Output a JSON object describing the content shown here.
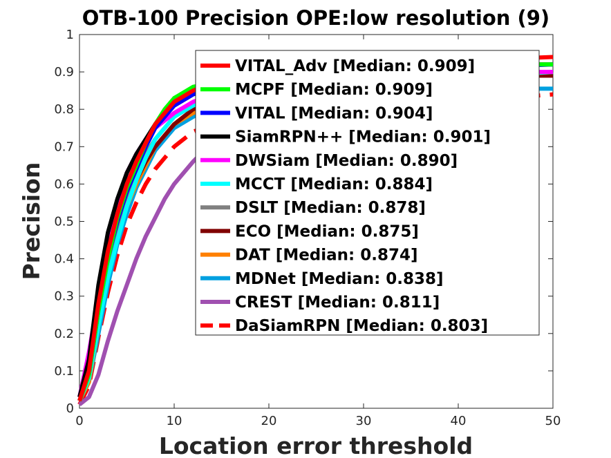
{
  "chart_data": {
    "type": "line",
    "title": "OTB-100 Precision OPE:low resolution (9)",
    "xlabel": "Location error threshold",
    "ylabel": "Precision",
    "xlim": [
      0,
      50
    ],
    "ylim": [
      0,
      1
    ],
    "x_ticks": [
      "0",
      "10",
      "20",
      "30",
      "40",
      "50"
    ],
    "y_ticks": [
      "0",
      "0.1",
      "0.2",
      "0.3",
      "0.4",
      "0.5",
      "0.6",
      "0.7",
      "0.8",
      "0.9",
      "1"
    ],
    "grid": false,
    "legend_position": "top-right",
    "x": [
      0,
      1,
      2,
      3,
      4,
      5,
      6,
      7,
      8,
      9,
      10,
      12,
      14,
      16,
      18,
      20,
      25,
      30,
      35,
      40,
      45,
      50
    ],
    "series": [
      {
        "name": "VITAL_Adv [Median: 0.909]",
        "color": "#ff0000",
        "dash": "solid",
        "values": [
          0.02,
          0.1,
          0.28,
          0.42,
          0.52,
          0.6,
          0.66,
          0.71,
          0.76,
          0.79,
          0.82,
          0.85,
          0.87,
          0.88,
          0.89,
          0.9,
          0.91,
          0.92,
          0.925,
          0.93,
          0.935,
          0.94
        ]
      },
      {
        "name": "MCPF [Median: 0.909]",
        "color": "#00ff00",
        "dash": "solid",
        "values": [
          0.02,
          0.09,
          0.26,
          0.4,
          0.51,
          0.59,
          0.65,
          0.71,
          0.76,
          0.8,
          0.83,
          0.86,
          0.87,
          0.88,
          0.89,
          0.9,
          0.905,
          0.91,
          0.915,
          0.92,
          0.92,
          0.92
        ]
      },
      {
        "name": "VITAL [Median: 0.904]",
        "color": "#0000ff",
        "dash": "solid",
        "values": [
          0.02,
          0.09,
          0.26,
          0.4,
          0.5,
          0.58,
          0.64,
          0.7,
          0.75,
          0.78,
          0.81,
          0.84,
          0.86,
          0.87,
          0.88,
          0.89,
          0.9,
          0.905,
          0.91,
          0.91,
          0.915,
          0.92
        ]
      },
      {
        "name": "SiamRPN++ [Median: 0.901]",
        "color": "#000000",
        "dash": "solid",
        "values": [
          0.03,
          0.13,
          0.33,
          0.47,
          0.56,
          0.63,
          0.68,
          0.72,
          0.76,
          0.79,
          0.81,
          0.84,
          0.86,
          0.87,
          0.88,
          0.89,
          0.9,
          0.905,
          0.91,
          0.915,
          0.92,
          0.92
        ]
      },
      {
        "name": "DWSiam [Median: 0.890]",
        "color": "#ff00ff",
        "dash": "solid",
        "values": [
          0.03,
          0.15,
          0.3,
          0.45,
          0.55,
          0.63,
          0.68,
          0.72,
          0.75,
          0.77,
          0.79,
          0.82,
          0.84,
          0.85,
          0.86,
          0.87,
          0.88,
          0.885,
          0.89,
          0.895,
          0.9,
          0.9
        ]
      },
      {
        "name": "MCCT [Median: 0.884]",
        "color": "#00ffff",
        "dash": "solid",
        "values": [
          0.02,
          0.08,
          0.22,
          0.35,
          0.45,
          0.54,
          0.61,
          0.67,
          0.72,
          0.75,
          0.78,
          0.81,
          0.83,
          0.85,
          0.86,
          0.87,
          0.88,
          0.885,
          0.89,
          0.89,
          0.895,
          0.9
        ]
      },
      {
        "name": "DSLT [Median: 0.878]",
        "color": "#808080",
        "dash": "solid",
        "values": [
          0.02,
          0.09,
          0.25,
          0.39,
          0.49,
          0.57,
          0.63,
          0.68,
          0.72,
          0.75,
          0.78,
          0.81,
          0.83,
          0.84,
          0.85,
          0.86,
          0.87,
          0.88,
          0.885,
          0.89,
          0.89,
          0.9
        ]
      },
      {
        "name": "ECO [Median: 0.875]",
        "color": "#800000",
        "dash": "solid",
        "values": [
          0.02,
          0.08,
          0.24,
          0.37,
          0.47,
          0.55,
          0.61,
          0.66,
          0.7,
          0.73,
          0.76,
          0.8,
          0.82,
          0.84,
          0.85,
          0.86,
          0.87,
          0.875,
          0.88,
          0.885,
          0.89,
          0.89
        ]
      },
      {
        "name": "DAT [Median: 0.874]",
        "color": "#ff8000",
        "dash": "solid",
        "values": [
          0.02,
          0.07,
          0.22,
          0.36,
          0.46,
          0.54,
          0.6,
          0.65,
          0.7,
          0.73,
          0.76,
          0.79,
          0.81,
          0.83,
          0.84,
          0.85,
          0.865,
          0.87,
          0.88,
          0.885,
          0.89,
          0.89
        ]
      },
      {
        "name": "MDNet [Median: 0.838]",
        "color": "#00a0e0",
        "dash": "solid",
        "values": [
          0.02,
          0.07,
          0.2,
          0.33,
          0.44,
          0.52,
          0.59,
          0.64,
          0.69,
          0.72,
          0.75,
          0.78,
          0.8,
          0.81,
          0.82,
          0.83,
          0.84,
          0.845,
          0.85,
          0.85,
          0.855,
          0.855
        ]
      },
      {
        "name": "CREST [Median: 0.811]",
        "color": "#a050b0",
        "dash": "solid",
        "values": [
          0.01,
          0.03,
          0.09,
          0.18,
          0.26,
          0.33,
          0.4,
          0.46,
          0.51,
          0.56,
          0.6,
          0.66,
          0.71,
          0.74,
          0.77,
          0.79,
          0.83,
          0.85,
          0.87,
          0.88,
          0.89,
          0.9
        ]
      },
      {
        "name": "DaSiamRPN [Median: 0.803]",
        "color": "#ff0000",
        "dash": "dashed",
        "values": [
          0.01,
          0.06,
          0.19,
          0.31,
          0.41,
          0.49,
          0.55,
          0.6,
          0.64,
          0.67,
          0.7,
          0.74,
          0.76,
          0.78,
          0.79,
          0.8,
          0.81,
          0.815,
          0.82,
          0.825,
          0.83,
          0.84
        ]
      }
    ]
  }
}
